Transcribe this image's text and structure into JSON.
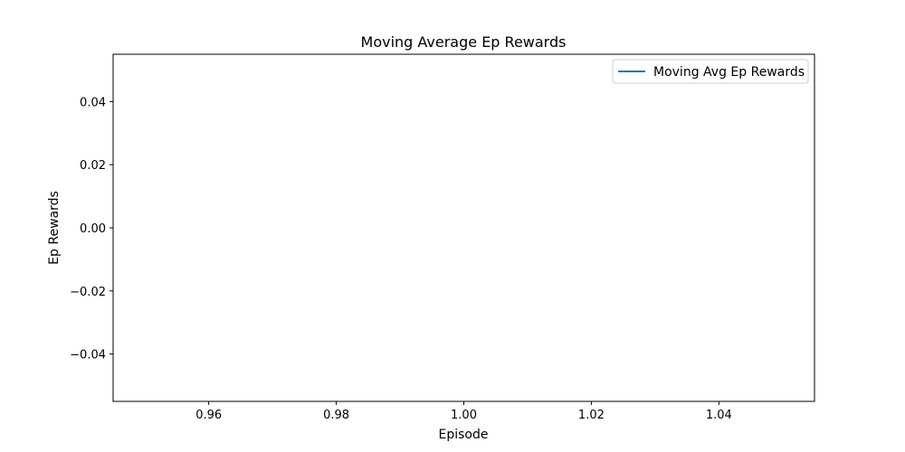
{
  "chart_data": {
    "type": "line",
    "title": "Moving Average Ep Rewards",
    "xlabel": "Episode",
    "ylabel": "Ep Rewards",
    "xlim": [
      0.945,
      1.055
    ],
    "ylim": [
      -0.055,
      0.055
    ],
    "x_ticks": [
      0.96,
      0.98,
      1.0,
      1.02,
      1.04
    ],
    "x_tick_labels": [
      "0.96",
      "0.98",
      "1.00",
      "1.02",
      "1.04"
    ],
    "y_ticks": [
      0.04,
      0.02,
      0.0,
      -0.02,
      -0.04
    ],
    "y_tick_labels": [
      "0.04",
      "0.02",
      "0.00",
      "−0.02",
      "−0.04"
    ],
    "series": [
      {
        "name": "Moving Avg Ep Rewards",
        "color": "#1f77b4",
        "x": [],
        "y": []
      }
    ],
    "legend_position": "top-right",
    "grid": false
  }
}
